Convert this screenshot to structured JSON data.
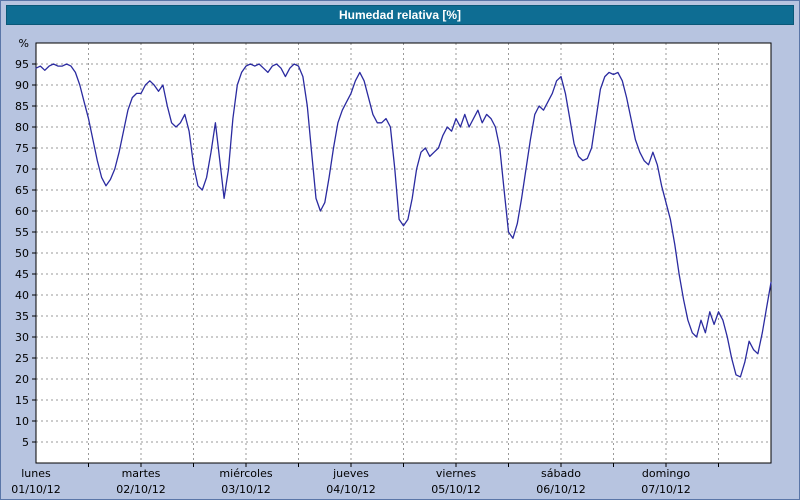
{
  "title": "Humedad relativa [%]",
  "colors": {
    "page_background": "#b7c4e0",
    "titlebar": "#0e6d93",
    "plot_background": "#ffffff",
    "grid": "#9a9a9a",
    "line": "#2b2ba0",
    "axis": "#000000"
  },
  "chart_data": {
    "type": "line",
    "title": "Humedad relativa [%]",
    "xlabel": "",
    "ylabel": "%",
    "ylim": [
      0,
      100
    ],
    "xlim_hours": [
      0,
      168
    ],
    "grid": true,
    "legend": "none",
    "y_ticks": [
      5,
      10,
      15,
      20,
      25,
      30,
      35,
      40,
      45,
      50,
      55,
      60,
      65,
      70,
      75,
      80,
      85,
      90,
      95
    ],
    "x_gridline_step_hours": 12,
    "x_labels": [
      {
        "day": "lunes",
        "date": "01/10/12",
        "hour": 0
      },
      {
        "day": "martes",
        "date": "02/10/12",
        "hour": 24
      },
      {
        "day": "miércoles",
        "date": "03/10/12",
        "hour": 48
      },
      {
        "day": "jueves",
        "date": "04/10/12",
        "hour": 72
      },
      {
        "day": "viernes",
        "date": "05/10/12",
        "hour": 96
      },
      {
        "day": "sábado",
        "date": "06/10/12",
        "hour": 120
      },
      {
        "day": "domingo",
        "date": "07/10/12",
        "hour": 144
      }
    ],
    "series": [
      {
        "name": "Humedad relativa",
        "unit": "%",
        "points": [
          [
            0,
            94
          ],
          [
            1,
            94.5
          ],
          [
            2,
            93.5
          ],
          [
            3,
            94.5
          ],
          [
            4,
            95
          ],
          [
            5,
            94.5
          ],
          [
            6,
            94.5
          ],
          [
            7,
            95
          ],
          [
            8,
            94.5
          ],
          [
            9,
            93
          ],
          [
            10,
            90
          ],
          [
            11,
            86
          ],
          [
            12,
            82
          ],
          [
            13,
            77
          ],
          [
            14,
            72
          ],
          [
            15,
            68
          ],
          [
            16,
            66
          ],
          [
            17,
            67.5
          ],
          [
            18,
            70
          ],
          [
            19,
            74
          ],
          [
            20,
            79
          ],
          [
            21,
            84
          ],
          [
            22,
            87
          ],
          [
            23,
            88
          ],
          [
            24,
            88
          ],
          [
            25,
            90
          ],
          [
            26,
            91
          ],
          [
            27,
            90
          ],
          [
            28,
            88.5
          ],
          [
            29,
            90
          ],
          [
            30,
            85
          ],
          [
            31,
            81
          ],
          [
            32,
            80
          ],
          [
            33,
            81
          ],
          [
            34,
            83
          ],
          [
            35,
            79
          ],
          [
            36,
            71
          ],
          [
            37,
            66
          ],
          [
            38,
            65
          ],
          [
            39,
            68
          ],
          [
            40,
            74
          ],
          [
            41,
            81
          ],
          [
            42,
            72
          ],
          [
            43,
            63
          ],
          [
            44,
            70
          ],
          [
            45,
            82
          ],
          [
            46,
            90
          ],
          [
            47,
            93
          ],
          [
            48,
            94.5
          ],
          [
            49,
            95
          ],
          [
            50,
            94.5
          ],
          [
            51,
            95
          ],
          [
            52,
            94
          ],
          [
            53,
            93
          ],
          [
            54,
            94.5
          ],
          [
            55,
            95
          ],
          [
            56,
            94
          ],
          [
            57,
            92
          ],
          [
            58,
            94
          ],
          [
            59,
            95
          ],
          [
            60,
            94.5
          ],
          [
            61,
            92
          ],
          [
            62,
            85
          ],
          [
            63,
            74
          ],
          [
            64,
            63
          ],
          [
            65,
            60
          ],
          [
            66,
            62
          ],
          [
            67,
            68
          ],
          [
            68,
            75
          ],
          [
            69,
            81
          ],
          [
            70,
            84
          ],
          [
            71,
            86
          ],
          [
            72,
            88
          ],
          [
            73,
            91
          ],
          [
            74,
            93
          ],
          [
            75,
            91
          ],
          [
            76,
            87
          ],
          [
            77,
            83
          ],
          [
            78,
            81
          ],
          [
            79,
            81
          ],
          [
            80,
            82
          ],
          [
            81,
            80
          ],
          [
            82,
            70
          ],
          [
            83,
            58
          ],
          [
            84,
            56.5
          ],
          [
            85,
            58
          ],
          [
            86,
            63
          ],
          [
            87,
            70
          ],
          [
            88,
            74
          ],
          [
            89,
            75
          ],
          [
            90,
            73
          ],
          [
            91,
            74
          ],
          [
            92,
            75
          ],
          [
            93,
            78
          ],
          [
            94,
            80
          ],
          [
            95,
            79
          ],
          [
            96,
            82
          ],
          [
            97,
            80
          ],
          [
            98,
            83
          ],
          [
            99,
            80
          ],
          [
            100,
            82
          ],
          [
            101,
            84
          ],
          [
            102,
            81
          ],
          [
            103,
            83
          ],
          [
            104,
            82
          ],
          [
            105,
            80
          ],
          [
            106,
            75
          ],
          [
            107,
            65
          ],
          [
            108,
            55
          ],
          [
            109,
            53.5
          ],
          [
            110,
            57
          ],
          [
            111,
            63
          ],
          [
            112,
            70
          ],
          [
            113,
            77
          ],
          [
            114,
            83
          ],
          [
            115,
            85
          ],
          [
            116,
            84
          ],
          [
            117,
            86
          ],
          [
            118,
            88
          ],
          [
            119,
            91
          ],
          [
            120,
            92
          ],
          [
            121,
            88
          ],
          [
            122,
            82
          ],
          [
            123,
            76
          ],
          [
            124,
            73
          ],
          [
            125,
            72
          ],
          [
            126,
            72.5
          ],
          [
            127,
            75
          ],
          [
            128,
            82
          ],
          [
            129,
            89
          ],
          [
            130,
            92
          ],
          [
            131,
            93
          ],
          [
            132,
            92.5
          ],
          [
            133,
            93
          ],
          [
            134,
            91
          ],
          [
            135,
            87
          ],
          [
            136,
            82
          ],
          [
            137,
            77
          ],
          [
            138,
            74
          ],
          [
            139,
            72
          ],
          [
            140,
            71
          ],
          [
            141,
            74
          ],
          [
            142,
            71
          ],
          [
            143,
            66
          ],
          [
            144,
            62
          ],
          [
            145,
            58
          ],
          [
            146,
            52
          ],
          [
            147,
            45
          ],
          [
            148,
            39
          ],
          [
            149,
            34
          ],
          [
            150,
            31
          ],
          [
            151,
            30
          ],
          [
            152,
            34
          ],
          [
            153,
            31
          ],
          [
            154,
            36
          ],
          [
            155,
            33
          ],
          [
            156,
            36
          ],
          [
            157,
            34
          ],
          [
            158,
            30
          ],
          [
            159,
            25
          ],
          [
            160,
            21
          ],
          [
            161,
            20.5
          ],
          [
            162,
            24
          ],
          [
            163,
            29
          ],
          [
            164,
            27
          ],
          [
            165,
            26
          ],
          [
            166,
            31
          ],
          [
            167,
            37
          ],
          [
            168,
            43
          ]
        ]
      }
    ]
  }
}
